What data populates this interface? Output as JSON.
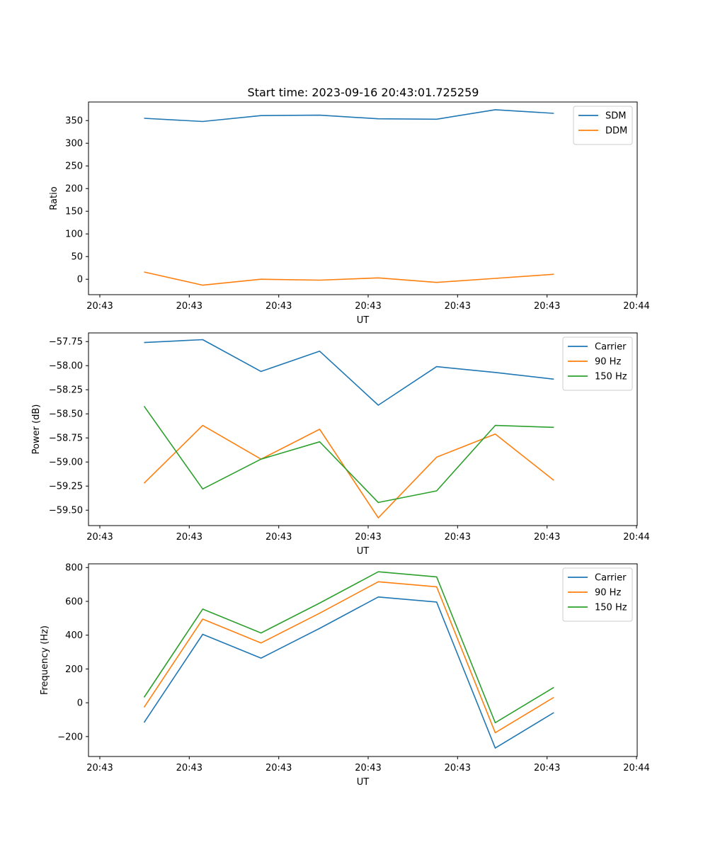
{
  "figure": {
    "title": "Start time: 2023-09-16 20:43:01.725259"
  },
  "chart_data": [
    {
      "type": "line",
      "title": "Start time: 2023-09-16 20:43:01.725259",
      "xlabel": "UT",
      "ylabel": "Ratio",
      "x_tick_labels": [
        "20:43",
        "20:43",
        "20:43",
        "20:43",
        "20:43",
        "20:43",
        "20:44"
      ],
      "y_ticks": [
        0,
        50,
        100,
        150,
        200,
        250,
        300,
        350
      ],
      "y_tick_labels": [
        "0",
        "50",
        "100",
        "150",
        "200",
        "250",
        "300",
        "350"
      ],
      "ylim": [
        -34,
        391
      ],
      "legend_position": "top-right",
      "series": [
        {
          "name": "SDM",
          "color": "#1f77b4",
          "values": [
            355,
            348,
            361,
            362,
            354,
            353,
            374,
            366
          ]
        },
        {
          "name": "DDM",
          "color": "#ff7f0e",
          "values": [
            16,
            -13,
            0,
            -2,
            3,
            -7,
            2,
            11
          ]
        }
      ]
    },
    {
      "type": "line",
      "title": "",
      "xlabel": "UT",
      "ylabel": "Power (dB)",
      "x_tick_labels": [
        "20:43",
        "20:43",
        "20:43",
        "20:43",
        "20:43",
        "20:43",
        "20:44"
      ],
      "y_ticks": [
        -57.75,
        -58.0,
        -58.25,
        -58.5,
        -58.75,
        -59.0,
        -59.25,
        -59.5
      ],
      "y_tick_labels": [
        "−57.75",
        "−58.00",
        "−58.25",
        "−58.50",
        "−58.75",
        "−59.00",
        "−59.25",
        "−59.50"
      ],
      "ylim": [
        -59.66,
        -57.66
      ],
      "legend_position": "top-right",
      "series": [
        {
          "name": "Carrier",
          "color": "#1f77b4",
          "values": [
            -57.76,
            -57.73,
            -58.06,
            -57.85,
            -58.41,
            -58.01,
            -58.07,
            -58.14
          ]
        },
        {
          "name": "90 Hz",
          "color": "#ff7f0e",
          "values": [
            -59.22,
            -58.62,
            -58.97,
            -58.66,
            -59.58,
            -58.95,
            -58.71,
            -59.19
          ]
        },
        {
          "name": "150 Hz",
          "color": "#2ca02c",
          "values": [
            -58.42,
            -59.28,
            -58.97,
            -58.79,
            -59.42,
            -59.3,
            -58.62,
            -58.64
          ]
        }
      ]
    },
    {
      "type": "line",
      "title": "",
      "xlabel": "UT",
      "ylabel": "Frequency (Hz)",
      "x_tick_labels": [
        "20:43",
        "20:43",
        "20:43",
        "20:43",
        "20:43",
        "20:43",
        "20:44"
      ],
      "y_ticks": [
        -200,
        0,
        200,
        400,
        600,
        800
      ],
      "y_tick_labels": [
        "−200",
        "0",
        "200",
        "400",
        "600",
        "800"
      ],
      "ylim": [
        -318,
        822
      ],
      "legend_position": "top-right",
      "series": [
        {
          "name": "Carrier",
          "color": "#1f77b4",
          "values": [
            -117,
            405,
            264,
            440,
            626,
            596,
            -268,
            -58
          ]
        },
        {
          "name": "90 Hz",
          "color": "#ff7f0e",
          "values": [
            -27,
            495,
            354,
            530,
            716,
            686,
            -177,
            32
          ]
        },
        {
          "name": "150 Hz",
          "color": "#2ca02c",
          "values": [
            32,
            554,
            413,
            590,
            775,
            745,
            -118,
            91
          ]
        }
      ]
    }
  ]
}
